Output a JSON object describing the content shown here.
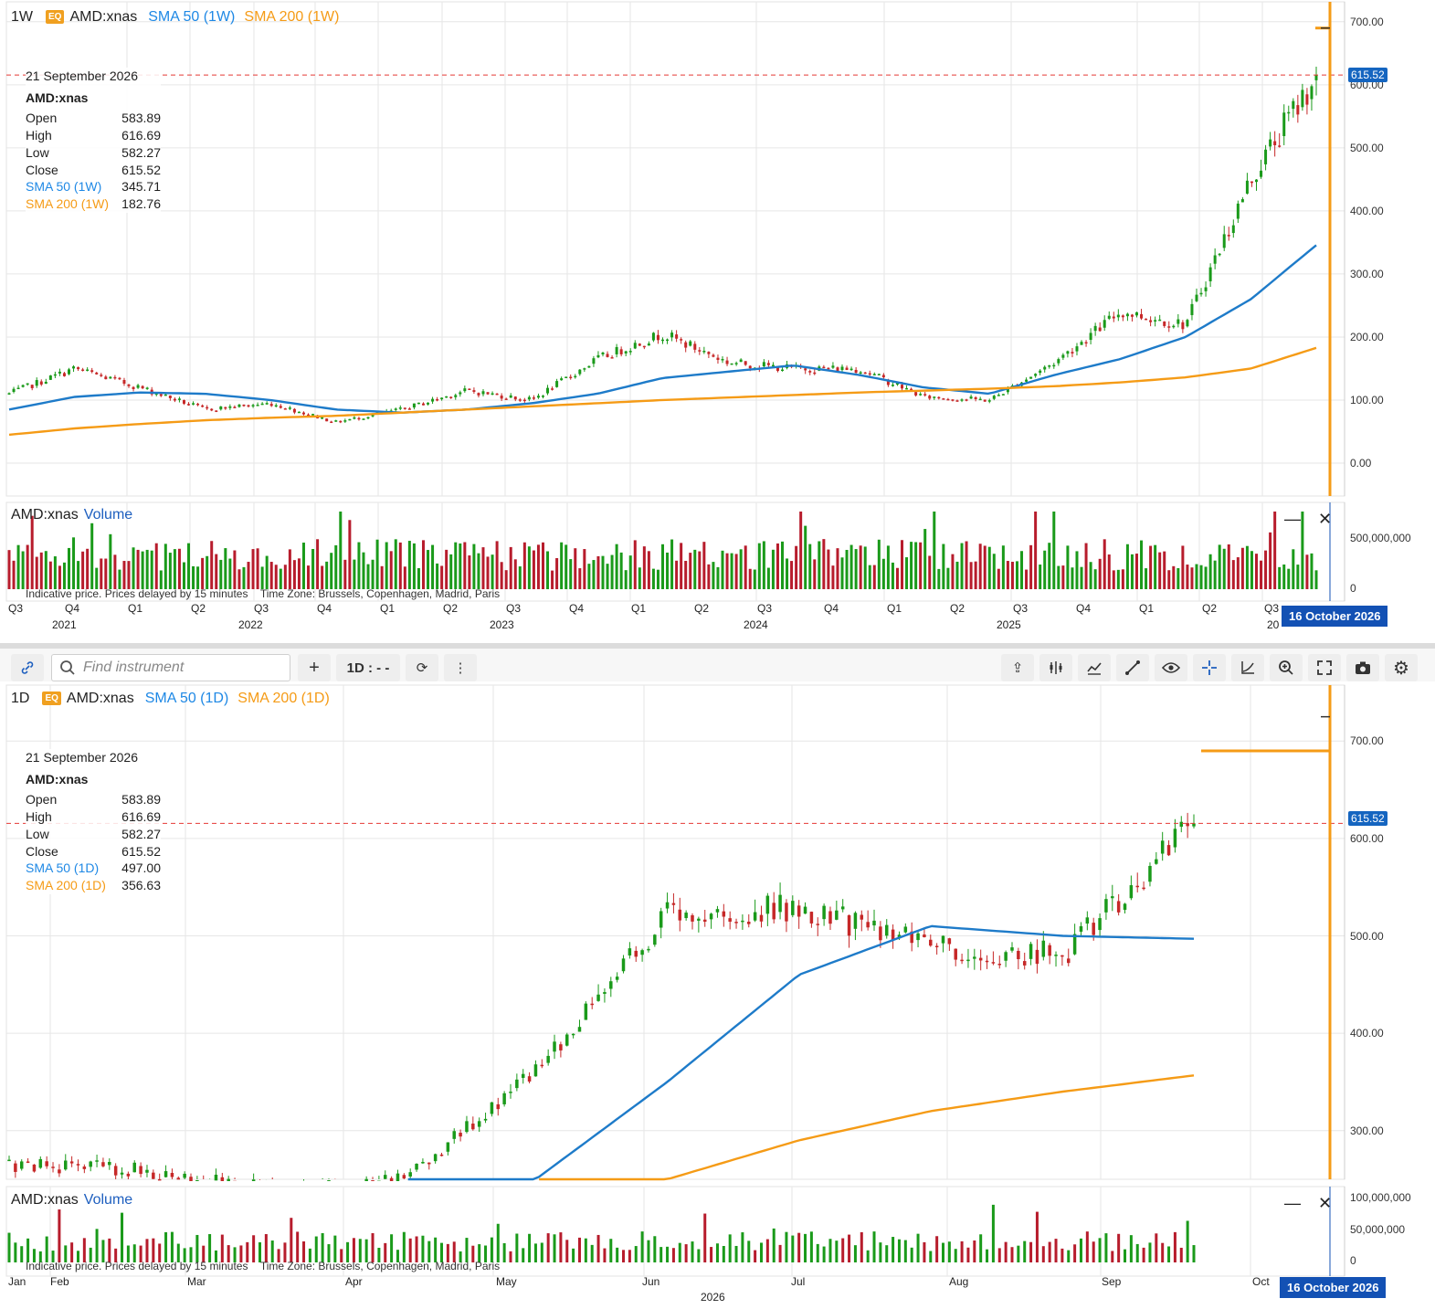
{
  "top_chart": {
    "timeframe": "1W",
    "badge": "EQ",
    "symbol": "AMD:xnas",
    "sma50_label": "SMA 50 (1W)",
    "sma200_label": "SMA 200 (1W)",
    "legend": {
      "date": "21 September 2026",
      "symbol": "AMD:xnas",
      "open_label": "Open",
      "open": "583.89",
      "high_label": "High",
      "high": "616.69",
      "low_label": "Low",
      "low": "582.27",
      "close_label": "Close",
      "close": "615.52",
      "sma50_label": "SMA 50 (1W)",
      "sma50": "345.71",
      "sma200_label": "SMA 200 (1W)",
      "sma200": "182.76"
    },
    "price_tag": "615.52",
    "y_ticks": [
      "700.00",
      "600.00",
      "500.00",
      "400.00",
      "300.00",
      "200.00",
      "100.00",
      "0.00"
    ],
    "volume_title": "AMD:xnas",
    "volume_label": "Volume",
    "volume_ticks": [
      "500,000,000",
      "0"
    ],
    "note": "Indicative price. Prices delayed by 15 minutes",
    "timezone": "Time Zone: Brussels, Copenhagen, Madrid, Paris",
    "quarters": [
      "Q3",
      "Q4",
      "Q1",
      "Q2",
      "Q3",
      "Q4",
      "Q1",
      "Q2",
      "Q3",
      "Q4",
      "Q1",
      "Q2",
      "Q3",
      "Q4",
      "Q1",
      "Q2",
      "Q3",
      "Q4",
      "Q1",
      "Q2",
      "Q3"
    ],
    "years": [
      "2021",
      "2022",
      "2023",
      "2024",
      "2025",
      "20"
    ],
    "date_tag": "16 October 2026"
  },
  "toolbar": {
    "search_placeholder": "Find instrument",
    "plus": "+",
    "interval": "1D : - -"
  },
  "bottom_chart": {
    "timeframe": "1D",
    "badge": "EQ",
    "symbol": "AMD:xnas",
    "sma50_label": "SMA 50 (1D)",
    "sma200_label": "SMA 200 (1D)",
    "legend": {
      "date": "21 September 2026",
      "symbol": "AMD:xnas",
      "open_label": "Open",
      "open": "583.89",
      "high_label": "High",
      "high": "616.69",
      "low_label": "Low",
      "low": "582.27",
      "close_label": "Close",
      "close": "615.52",
      "sma50_label": "SMA 50 (1D)",
      "sma50": "497.00",
      "sma200_label": "SMA 200 (1D)",
      "sma200": "356.63"
    },
    "price_tag": "615.52",
    "y_ticks": [
      "700.00",
      "600.00",
      "500.00",
      "400.00",
      "300.00"
    ],
    "volume_title": "AMD:xnas",
    "volume_label": "Volume",
    "volume_ticks": [
      "100,000,000",
      "50,000,000",
      "0"
    ],
    "note": "Indicative price. Prices delayed by 15 minutes",
    "timezone": "Time Zone: Brussels, Copenhagen, Madrid, Paris",
    "months": [
      "Jan",
      "Feb",
      "Mar",
      "Apr",
      "May",
      "Jun",
      "Jul",
      "Aug",
      "Sep",
      "Oct"
    ],
    "year": "2026",
    "date_tag": "16 October 2026"
  },
  "chart_data": [
    {
      "type": "candlestick",
      "title": "AMD:xnas 1W",
      "ylim": [
        0,
        720
      ],
      "x": [
        "2021-Q3",
        "2021-Q4",
        "2022-Q1",
        "2022-Q2",
        "2022-Q3",
        "2022-Q4",
        "2023-Q1",
        "2023-Q2",
        "2023-Q3",
        "2023-Q4",
        "2024-Q1",
        "2024-Q2",
        "2024-Q3",
        "2024-Q4",
        "2025-Q1",
        "2025-Q2",
        "2025-Q3",
        "2025-Q4",
        "2026-Q1",
        "2026-Q2",
        "2026-Q3"
      ],
      "series": [
        {
          "name": "AMD:xnas",
          "values": [
            110,
            150,
            120,
            85,
            95,
            65,
            85,
            115,
            100,
            165,
            205,
            160,
            150,
            150,
            105,
            100,
            160,
            240,
            220,
            450,
            615.52
          ]
        },
        {
          "name": "SMA 50 (1W)",
          "values": [
            85,
            105,
            112,
            110,
            100,
            85,
            80,
            85,
            95,
            110,
            135,
            145,
            155,
            140,
            120,
            110,
            140,
            165,
            200,
            260,
            345.71
          ]
        },
        {
          "name": "SMA 200 (1W)",
          "values": [
            45,
            55,
            62,
            68,
            72,
            75,
            80,
            85,
            90,
            95,
            100,
            104,
            108,
            112,
            115,
            118,
            122,
            128,
            136,
            150,
            182.76
          ]
        }
      ],
      "last_close": 615.52
    },
    {
      "type": "candlestick",
      "title": "AMD:xnas 1D",
      "ylim": [
        250,
        750
      ],
      "x": [
        "Jan",
        "Feb",
        "Mar",
        "Apr",
        "May",
        "Jun",
        "Jul",
        "Aug",
        "Sep",
        "Oct"
      ],
      "series": [
        {
          "name": "AMD:xnas",
          "values": [
            265,
            260,
            240,
            250,
            360,
            520,
            530,
            490,
            480,
            615.52
          ]
        },
        {
          "name": "SMA 50 (1D)",
          "values": [
            null,
            null,
            null,
            null,
            250,
            350,
            460,
            510,
            500,
            497.0
          ]
        },
        {
          "name": "SMA 200 (1D)",
          "values": [
            null,
            null,
            null,
            null,
            null,
            250,
            290,
            320,
            340,
            356.63
          ]
        }
      ],
      "last_close": 615.52
    }
  ]
}
